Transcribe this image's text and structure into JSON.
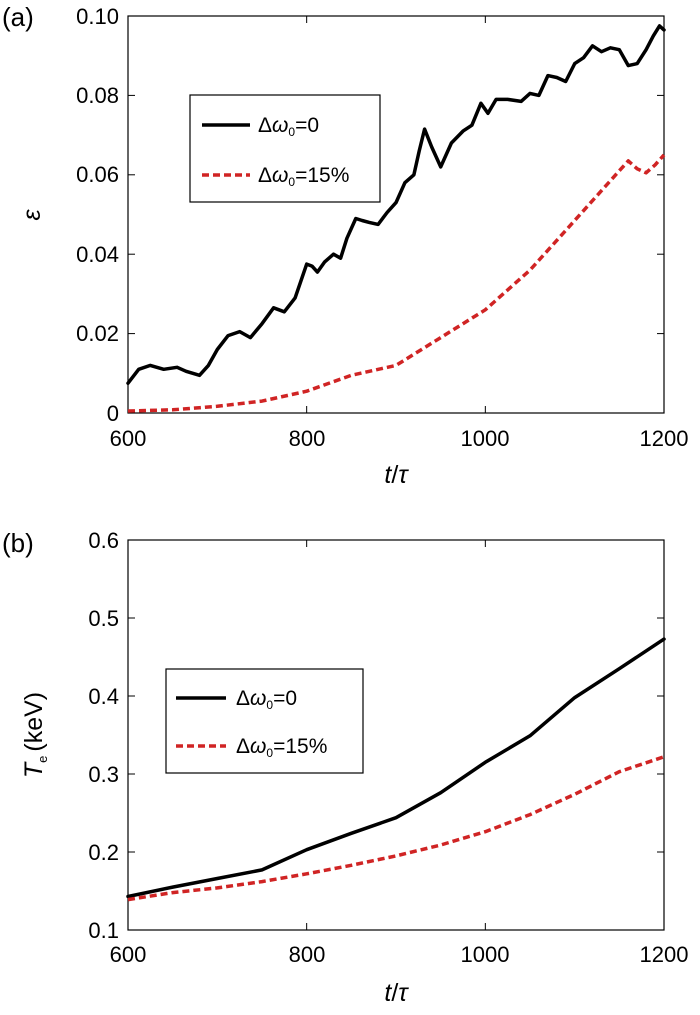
{
  "chart_data": [
    {
      "type": "line",
      "panel_label": "(a)",
      "xlabel": "t/τ",
      "xlabel_parts": [
        "t",
        "/",
        "τ"
      ],
      "ylabel": "ε",
      "xlim": [
        600,
        1200
      ],
      "ylim": [
        0,
        0.1
      ],
      "xticks": [
        "600",
        "800",
        "1000",
        "1200"
      ],
      "yticks": [
        "0",
        "0.02",
        "0.04",
        "0.06",
        "0.08",
        "0.10"
      ],
      "legend_position": "upper-left",
      "series": [
        {
          "name": "Δω0=0",
          "name_parts": [
            "Δ",
            "ω",
            "0",
            "=0"
          ],
          "color": "#000000",
          "dash": "solid",
          "x": [
            600,
            612,
            625,
            640,
            655,
            665,
            680,
            690,
            700,
            712,
            725,
            737,
            750,
            763,
            775,
            787,
            800,
            806,
            812,
            820,
            830,
            838,
            845,
            855,
            862,
            870,
            880,
            890,
            900,
            910,
            920,
            926,
            932,
            940,
            950,
            962,
            975,
            985,
            995,
            1003,
            1012,
            1025,
            1040,
            1050,
            1060,
            1070,
            1080,
            1090,
            1100,
            1110,
            1120,
            1130,
            1140,
            1150,
            1160,
            1170,
            1180,
            1188,
            1195,
            1200
          ],
          "y": [
            0.0075,
            0.011,
            0.012,
            0.011,
            0.0115,
            0.0105,
            0.0095,
            0.012,
            0.016,
            0.0195,
            0.0205,
            0.019,
            0.0225,
            0.0265,
            0.0255,
            0.029,
            0.0375,
            0.037,
            0.0355,
            0.038,
            0.04,
            0.039,
            0.044,
            0.049,
            0.0485,
            0.048,
            0.0475,
            0.0505,
            0.053,
            0.058,
            0.06,
            0.066,
            0.0715,
            0.067,
            0.062,
            0.068,
            0.071,
            0.0725,
            0.078,
            0.0755,
            0.079,
            0.079,
            0.0785,
            0.0805,
            0.08,
            0.085,
            0.0845,
            0.0835,
            0.088,
            0.0895,
            0.0925,
            0.091,
            0.092,
            0.0915,
            0.0875,
            0.088,
            0.0915,
            0.095,
            0.0975,
            0.0965
          ]
        },
        {
          "name": "Δω0=15%",
          "name_parts": [
            "Δ",
            "ω",
            "0",
            "=15%"
          ],
          "color": "#d02424",
          "dash": "dashed",
          "x": [
            600,
            650,
            700,
            750,
            800,
            850,
            900,
            950,
            1000,
            1050,
            1100,
            1150,
            1160,
            1170,
            1180,
            1190,
            1200
          ],
          "y": [
            0.0005,
            0.0008,
            0.0017,
            0.003,
            0.0055,
            0.0095,
            0.012,
            0.019,
            0.026,
            0.036,
            0.0485,
            0.061,
            0.0635,
            0.0615,
            0.0605,
            0.0625,
            0.065
          ]
        }
      ]
    },
    {
      "type": "line",
      "panel_label": "(b)",
      "xlabel": "t/τ",
      "xlabel_parts": [
        "t",
        "/",
        "τ"
      ],
      "ylabel": "Te (keV)",
      "ylabel_parts": [
        "T",
        "e",
        "(keV)"
      ],
      "xlim": [
        600,
        1200
      ],
      "ylim": [
        0.1,
        0.6
      ],
      "xticks": [
        "600",
        "800",
        "1000",
        "1200"
      ],
      "yticks": [
        "0.1",
        "0.2",
        "0.3",
        "0.4",
        "0.5",
        "0.6"
      ],
      "legend_position": "middle-left",
      "series": [
        {
          "name": "Δω0=0",
          "name_parts": [
            "Δ",
            "ω",
            "0",
            "=0"
          ],
          "color": "#000000",
          "dash": "solid",
          "x": [
            600,
            650,
            700,
            750,
            800,
            850,
            900,
            950,
            1000,
            1050,
            1100,
            1150,
            1200
          ],
          "y": [
            0.143,
            0.155,
            0.166,
            0.177,
            0.203,
            0.224,
            0.244,
            0.276,
            0.315,
            0.349,
            0.398,
            0.435,
            0.473
          ]
        },
        {
          "name": "Δω0=15%",
          "name_parts": [
            "Δ",
            "ω",
            "0",
            "=15%"
          ],
          "color": "#d02424",
          "dash": "dashed",
          "x": [
            600,
            650,
            700,
            750,
            800,
            850,
            900,
            950,
            1000,
            1050,
            1100,
            1150,
            1200
          ],
          "y": [
            0.139,
            0.148,
            0.154,
            0.162,
            0.172,
            0.183,
            0.195,
            0.209,
            0.226,
            0.248,
            0.274,
            0.303,
            0.322
          ]
        }
      ]
    }
  ]
}
